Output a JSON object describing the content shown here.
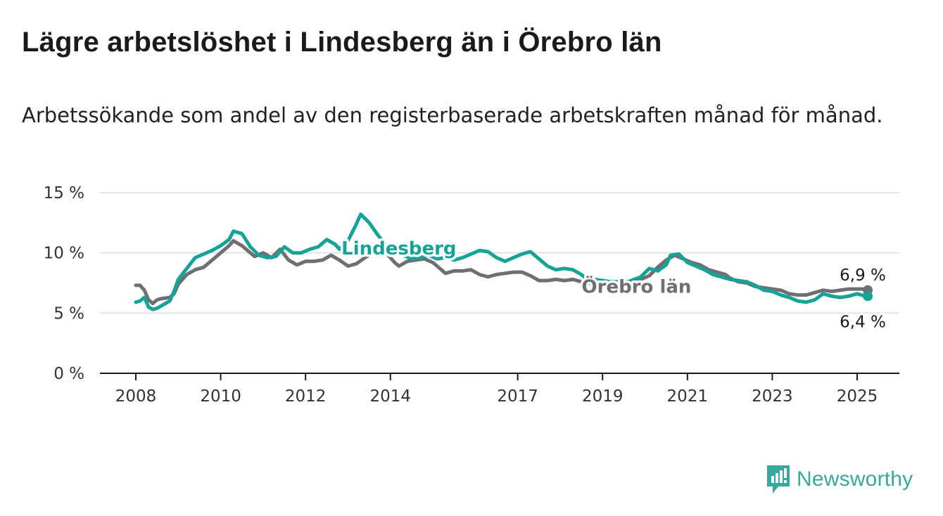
{
  "header": {
    "title": "Lägre arbetslöshet i Lindesberg än i Örebro län",
    "subtitle": "Arbetssökande som andel av den registerbaserade arbetskraften månad för månad."
  },
  "brand": {
    "name": "Newsworthy",
    "icon": "newsworthy-logo-icon",
    "color": "#3aa79c"
  },
  "chart_data": {
    "type": "line",
    "xlim": [
      2007.9,
      2026.1
    ],
    "ylim": [
      0,
      15
    ],
    "yticks": [
      0,
      5,
      10,
      15
    ],
    "ytick_labels": [
      "0 %",
      "5 %",
      "10 %",
      "15 %"
    ],
    "xticks": [
      2008,
      2010,
      2012,
      2014,
      2017,
      2019,
      2021,
      2023,
      2025
    ],
    "xtick_labels": [
      "2008",
      "2010",
      "2012",
      "2014",
      "2017",
      "2019",
      "2021",
      "2023",
      "2025"
    ],
    "grid": true,
    "series": [
      {
        "name": "Örebro län",
        "color": "#6e6e73",
        "end_label": "6,9 %",
        "end_value": 6.9,
        "points": [
          [
            2008.0,
            7.3
          ],
          [
            2008.1,
            7.3
          ],
          [
            2008.2,
            6.9
          ],
          [
            2008.3,
            6.1
          ],
          [
            2008.4,
            5.8
          ],
          [
            2008.5,
            6.1
          ],
          [
            2008.6,
            6.2
          ],
          [
            2008.8,
            6.3
          ],
          [
            2008.9,
            6.6
          ],
          [
            2009.0,
            7.4
          ],
          [
            2009.2,
            8.2
          ],
          [
            2009.4,
            8.6
          ],
          [
            2009.6,
            8.8
          ],
          [
            2009.8,
            9.4
          ],
          [
            2010.0,
            10.0
          ],
          [
            2010.2,
            10.6
          ],
          [
            2010.3,
            11.0
          ],
          [
            2010.5,
            10.6
          ],
          [
            2010.7,
            10.0
          ],
          [
            2010.8,
            9.7
          ],
          [
            2011.0,
            10.0
          ],
          [
            2011.2,
            9.6
          ],
          [
            2011.4,
            10.3
          ],
          [
            2011.6,
            9.4
          ],
          [
            2011.8,
            9.0
          ],
          [
            2012.0,
            9.3
          ],
          [
            2012.2,
            9.3
          ],
          [
            2012.4,
            9.4
          ],
          [
            2012.6,
            9.8
          ],
          [
            2012.8,
            9.4
          ],
          [
            2013.0,
            8.9
          ],
          [
            2013.2,
            9.1
          ],
          [
            2013.4,
            9.6
          ],
          [
            2013.6,
            10.0
          ],
          [
            2013.9,
            10.0
          ],
          [
            2014.1,
            9.2
          ],
          [
            2014.2,
            8.9
          ],
          [
            2014.4,
            9.3
          ],
          [
            2014.6,
            9.4
          ],
          [
            2014.8,
            9.5
          ],
          [
            2015.0,
            9.2
          ],
          [
            2015.1,
            8.9
          ],
          [
            2015.3,
            8.3
          ],
          [
            2015.5,
            8.5
          ],
          [
            2015.7,
            8.5
          ],
          [
            2015.9,
            8.6
          ],
          [
            2016.1,
            8.2
          ],
          [
            2016.3,
            8.0
          ],
          [
            2016.5,
            8.2
          ],
          [
            2016.7,
            8.3
          ],
          [
            2016.9,
            8.4
          ],
          [
            2017.1,
            8.4
          ],
          [
            2017.3,
            8.1
          ],
          [
            2017.5,
            7.7
          ],
          [
            2017.7,
            7.7
          ],
          [
            2017.9,
            7.8
          ],
          [
            2018.1,
            7.7
          ],
          [
            2018.3,
            7.8
          ],
          [
            2018.5,
            7.6
          ],
          [
            2018.6,
            7.5
          ],
          [
            2019.2,
            7.3
          ],
          [
            2019.6,
            7.3
          ],
          [
            2019.9,
            7.8
          ],
          [
            2020.1,
            8.1
          ],
          [
            2020.3,
            8.8
          ],
          [
            2020.5,
            9.4
          ],
          [
            2020.7,
            9.8
          ],
          [
            2020.9,
            9.5
          ],
          [
            2021.1,
            9.2
          ],
          [
            2021.3,
            9.0
          ],
          [
            2021.5,
            8.6
          ],
          [
            2021.7,
            8.4
          ],
          [
            2021.9,
            8.2
          ],
          [
            2022.0,
            7.9
          ],
          [
            2022.2,
            7.6
          ],
          [
            2022.4,
            7.5
          ],
          [
            2022.6,
            7.2
          ],
          [
            2022.8,
            7.1
          ],
          [
            2023.0,
            7.0
          ],
          [
            2023.2,
            6.9
          ],
          [
            2023.4,
            6.6
          ],
          [
            2023.6,
            6.5
          ],
          [
            2023.8,
            6.5
          ],
          [
            2024.0,
            6.7
          ],
          [
            2024.2,
            6.9
          ],
          [
            2024.4,
            6.8
          ],
          [
            2024.6,
            6.9
          ],
          [
            2024.8,
            7.0
          ],
          [
            2025.0,
            7.0
          ],
          [
            2025.2,
            7.0
          ],
          [
            2025.25,
            6.9
          ]
        ]
      },
      {
        "name": "Lindesberg",
        "color": "#14a396",
        "end_label": "6,4 %",
        "end_value": 6.4,
        "points": [
          [
            2008.0,
            5.9
          ],
          [
            2008.1,
            6.0
          ],
          [
            2008.2,
            6.3
          ],
          [
            2008.3,
            5.5
          ],
          [
            2008.4,
            5.3
          ],
          [
            2008.5,
            5.4
          ],
          [
            2008.6,
            5.6
          ],
          [
            2008.8,
            6.0
          ],
          [
            2008.9,
            6.8
          ],
          [
            2009.0,
            7.8
          ],
          [
            2009.2,
            8.7
          ],
          [
            2009.4,
            9.6
          ],
          [
            2009.6,
            9.9
          ],
          [
            2009.8,
            10.2
          ],
          [
            2010.0,
            10.6
          ],
          [
            2010.2,
            11.1
          ],
          [
            2010.3,
            11.8
          ],
          [
            2010.5,
            11.6
          ],
          [
            2010.7,
            10.5
          ],
          [
            2010.9,
            9.8
          ],
          [
            2011.1,
            9.6
          ],
          [
            2011.3,
            9.7
          ],
          [
            2011.5,
            10.5
          ],
          [
            2011.7,
            10.0
          ],
          [
            2011.9,
            10.0
          ],
          [
            2012.1,
            10.3
          ],
          [
            2012.3,
            10.5
          ],
          [
            2012.5,
            11.1
          ],
          [
            2012.7,
            10.7
          ],
          [
            2012.8,
            10.3
          ],
          [
            2013.0,
            11.0
          ],
          [
            2013.2,
            12.4
          ],
          [
            2013.3,
            13.2
          ],
          [
            2013.5,
            12.5
          ],
          [
            2013.7,
            11.5
          ],
          [
            2013.9,
            10.6
          ],
          [
            2014.1,
            10.3
          ],
          [
            2014.3,
            9.8
          ],
          [
            2014.5,
            9.5
          ],
          [
            2014.7,
            9.6
          ],
          [
            2014.9,
            9.8
          ],
          [
            2015.1,
            9.5
          ],
          [
            2015.3,
            9.6
          ],
          [
            2015.5,
            9.4
          ],
          [
            2015.7,
            9.6
          ],
          [
            2015.9,
            9.9
          ],
          [
            2016.1,
            10.2
          ],
          [
            2016.3,
            10.1
          ],
          [
            2016.5,
            9.6
          ],
          [
            2016.7,
            9.3
          ],
          [
            2016.9,
            9.6
          ],
          [
            2017.1,
            9.9
          ],
          [
            2017.3,
            10.1
          ],
          [
            2017.5,
            9.5
          ],
          [
            2017.7,
            8.9
          ],
          [
            2017.9,
            8.6
          ],
          [
            2018.1,
            8.7
          ],
          [
            2018.3,
            8.6
          ],
          [
            2018.5,
            8.2
          ],
          [
            2018.6,
            7.9
          ],
          [
            2019.2,
            7.6
          ],
          [
            2019.6,
            7.6
          ],
          [
            2019.9,
            8.0
          ],
          [
            2020.1,
            8.7
          ],
          [
            2020.3,
            8.5
          ],
          [
            2020.5,
            9.0
          ],
          [
            2020.6,
            9.8
          ],
          [
            2020.8,
            9.9
          ],
          [
            2021.0,
            9.2
          ],
          [
            2021.2,
            8.9
          ],
          [
            2021.4,
            8.6
          ],
          [
            2021.6,
            8.2
          ],
          [
            2021.8,
            8.0
          ],
          [
            2022.0,
            7.8
          ],
          [
            2022.2,
            7.7
          ],
          [
            2022.4,
            7.6
          ],
          [
            2022.6,
            7.3
          ],
          [
            2022.8,
            6.9
          ],
          [
            2023.0,
            6.8
          ],
          [
            2023.2,
            6.5
          ],
          [
            2023.4,
            6.3
          ],
          [
            2023.6,
            6.0
          ],
          [
            2023.8,
            5.9
          ],
          [
            2024.0,
            6.1
          ],
          [
            2024.2,
            6.6
          ],
          [
            2024.4,
            6.4
          ],
          [
            2024.6,
            6.3
          ],
          [
            2024.8,
            6.4
          ],
          [
            2025.0,
            6.6
          ],
          [
            2025.2,
            6.4
          ],
          [
            2025.25,
            6.4
          ]
        ]
      }
    ],
    "annotations": [
      {
        "text": "Lindesberg",
        "series": "Lindesberg",
        "x": 2014.2,
        "y": 10.4
      },
      {
        "text": "Örebro län",
        "series": "Örebro län",
        "x": 2019.8,
        "y": 7.2
      }
    ]
  }
}
